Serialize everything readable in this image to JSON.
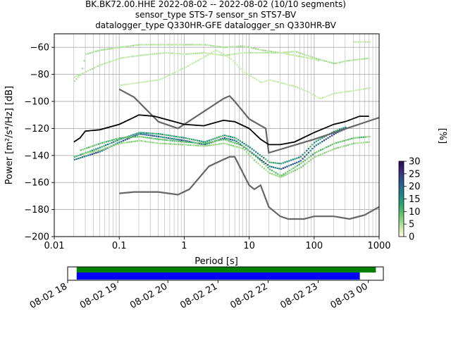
{
  "chart_data": [
    {
      "type": "heatmap",
      "title_lines": [
        "BK.BK72.00.HHE   2022-08-02 -- 2022-08-02  (10/10 segments)",
        "sensor_type STS-7 sensor_sn STS7-BV",
        "datalogger_type Q330HR-GFE datalogger_sn Q330HR-BV"
      ],
      "xlabel": "Period [s]",
      "ylabel": "Power [m²/s⁴/Hz] [dB]",
      "xscale": "log",
      "xlim": [
        0.01,
        1000
      ],
      "ylim": [
        -200,
        -50
      ],
      "xtick_labels": [
        "0.01",
        "0.1",
        "1",
        "10",
        "100",
        "1000"
      ],
      "ytick_labels": [
        "-200",
        "-180",
        "-160",
        "-140",
        "-120",
        "-100",
        "-80",
        "-60"
      ],
      "grid": true,
      "colorbar": {
        "label": "[%]",
        "range": [
          0,
          30
        ],
        "tick_labels": [
          "0",
          "5",
          "10",
          "15",
          "20",
          "25",
          "30"
        ]
      },
      "noise_models": {
        "high": [
          [
            0.1,
            -91
          ],
          [
            0.17,
            -97
          ],
          [
            0.4,
            -115
          ],
          [
            0.8,
            -120
          ],
          [
            4,
            -98
          ],
          [
            5,
            -96
          ],
          [
            6,
            -100
          ],
          [
            10,
            -113
          ],
          [
            18,
            -120
          ],
          [
            20,
            -138
          ],
          [
            100,
            -128
          ],
          [
            1000,
            -112
          ]
        ],
        "low": [
          [
            0.1,
            -168
          ],
          [
            0.17,
            -167
          ],
          [
            0.4,
            -167
          ],
          [
            0.8,
            -169
          ],
          [
            1.2,
            -165
          ],
          [
            2.4,
            -148
          ],
          [
            4,
            -143
          ],
          [
            5,
            -141
          ],
          [
            6,
            -141
          ],
          [
            10,
            -162
          ],
          [
            12,
            -165
          ],
          [
            15,
            -162
          ],
          [
            20,
            -178
          ],
          [
            30,
            -185
          ],
          [
            40,
            -187
          ],
          [
            70,
            -187
          ],
          [
            100,
            -185
          ],
          [
            200,
            -185
          ],
          [
            350,
            -187
          ],
          [
            600,
            -184
          ],
          [
            1000,
            -178
          ]
        ]
      },
      "mean_curve": [
        [
          0.02,
          -130
        ],
        [
          0.025,
          -127
        ],
        [
          0.03,
          -122
        ],
        [
          0.05,
          -121
        ],
        [
          0.1,
          -117
        ],
        [
          0.15,
          -113
        ],
        [
          0.2,
          -110
        ],
        [
          0.35,
          -111
        ],
        [
          0.5,
          -113
        ],
        [
          1,
          -117
        ],
        [
          2,
          -118
        ],
        [
          4,
          -114
        ],
        [
          6,
          -115
        ],
        [
          10,
          -120
        ],
        [
          15,
          -128
        ],
        [
          20,
          -132
        ],
        [
          30,
          -132
        ],
        [
          50,
          -130
        ],
        [
          100,
          -123
        ],
        [
          200,
          -117
        ],
        [
          300,
          -115
        ],
        [
          500,
          -111
        ],
        [
          700,
          -111
        ]
      ],
      "density_bands": [
        {
          "percent": 25,
          "points": [
            [
              0.02,
              -143
            ],
            [
              0.05,
              -137
            ],
            [
              0.1,
              -130
            ],
            [
              0.2,
              -124
            ],
            [
              0.4,
              -126
            ],
            [
              1,
              -129
            ],
            [
              2,
              -132
            ],
            [
              4,
              -127
            ],
            [
              6,
              -129
            ],
            [
              10,
              -137
            ],
            [
              20,
              -148
            ],
            [
              30,
              -150
            ],
            [
              60,
              -144
            ],
            [
              100,
              -133
            ],
            [
              200,
              -124
            ],
            [
              300,
              -120
            ]
          ]
        },
        {
          "percent": 18,
          "points": [
            [
              0.02,
              -141
            ],
            [
              0.05,
              -134
            ],
            [
              0.1,
              -128
            ],
            [
              0.2,
              -123
            ],
            [
              0.4,
              -124
            ],
            [
              1,
              -127
            ],
            [
              2,
              -130
            ],
            [
              4,
              -125
            ],
            [
              6,
              -127
            ],
            [
              10,
              -134
            ],
            [
              20,
              -145
            ],
            [
              30,
              -146
            ],
            [
              60,
              -141
            ],
            [
              100,
              -130
            ],
            [
              200,
              -122
            ],
            [
              300,
              -119
            ]
          ]
        },
        {
          "percent": 12,
          "points": [
            [
              0.025,
              -136
            ],
            [
              0.05,
              -131
            ],
            [
              0.1,
              -127
            ],
            [
              0.2,
              -126
            ],
            [
              0.4,
              -128
            ],
            [
              1,
              -130
            ],
            [
              2,
              -131
            ],
            [
              4,
              -128
            ],
            [
              8,
              -133
            ],
            [
              12,
              -140
            ],
            [
              20,
              -150
            ],
            [
              30,
              -155
            ],
            [
              60,
              -146
            ],
            [
              100,
              -138
            ],
            [
              200,
              -131
            ],
            [
              400,
              -127
            ],
            [
              700,
              -126
            ]
          ]
        },
        {
          "percent": 8,
          "points": [
            [
              0.025,
              -139
            ],
            [
              0.05,
              -136
            ],
            [
              0.1,
              -131
            ],
            [
              0.2,
              -129
            ],
            [
              0.4,
              -131
            ],
            [
              1,
              -132
            ],
            [
              2,
              -133
            ],
            [
              4,
              -131
            ],
            [
              8,
              -135
            ],
            [
              12,
              -144
            ],
            [
              20,
              -153
            ],
            [
              30,
              -156
            ],
            [
              60,
              -149
            ],
            [
              100,
              -141
            ],
            [
              200,
              -135
            ],
            [
              400,
              -131
            ],
            [
              700,
              -130
            ]
          ]
        },
        {
          "percent": 6,
          "points": [
            [
              0.02,
              -85
            ],
            [
              0.025,
              -80
            ],
            [
              0.03,
              -65
            ],
            [
              0.05,
              -62
            ],
            [
              0.1,
              -60
            ],
            [
              0.2,
              -58
            ],
            [
              0.4,
              -58
            ],
            [
              1,
              -58
            ],
            [
              2,
              -58
            ],
            [
              4,
              -60
            ],
            [
              8,
              -59
            ],
            [
              15,
              -62
            ],
            [
              30,
              -64
            ],
            [
              50,
              -63
            ],
            [
              100,
              -68
            ],
            [
              200,
              -72
            ],
            [
              300,
              -70
            ],
            [
              700,
              -68
            ]
          ]
        },
        {
          "percent": 5,
          "points": [
            [
              0.02,
              -82
            ],
            [
              0.05,
              -73
            ],
            [
              0.1,
              -68
            ],
            [
              0.2,
              -66
            ],
            [
              0.5,
              -64
            ],
            [
              1,
              -65
            ],
            [
              2,
              -64
            ],
            [
              4,
              -66
            ],
            [
              8,
              -64
            ],
            [
              20,
              -64
            ],
            [
              30,
              -64
            ],
            [
              80,
              -68
            ],
            [
              120,
              -70
            ]
          ]
        },
        {
          "percent": 4,
          "points": [
            [
              0.1,
              -88
            ],
            [
              0.2,
              -86
            ],
            [
              0.4,
              -84
            ],
            [
              1,
              -75
            ],
            [
              2,
              -67
            ],
            [
              3,
              -62
            ],
            [
              5,
              -68
            ],
            [
              8,
              -78
            ],
            [
              15,
              -86
            ],
            [
              20,
              -84
            ],
            [
              50,
              -89
            ],
            [
              80,
              -93
            ],
            [
              120,
              -98
            ],
            [
              200,
              -94
            ],
            [
              400,
              -92
            ],
            [
              700,
              -90
            ]
          ]
        },
        {
          "percent": 4,
          "points": [
            [
              400,
              -56
            ],
            [
              500,
              -56
            ],
            [
              700,
              -56
            ]
          ]
        }
      ],
      "legend": null
    },
    {
      "type": "timeline",
      "xtick_labels": [
        "08-02 18",
        "08-02 19",
        "08-02 20",
        "08-02 21",
        "08-02 22",
        "08-02 23",
        "08-03 00"
      ],
      "x_start_hours": 0.0,
      "x_end_hours": 6.3,
      "bars": [
        {
          "name": "data",
          "start_hours": 0.18,
          "end_hours": 6.15,
          "color": "#008000"
        },
        {
          "name": "psd",
          "start_hours": 0.18,
          "end_hours": 5.83,
          "color": "#0000ff"
        }
      ]
    }
  ],
  "colors": {
    "noise_model": "#666666",
    "mean": "#000000",
    "grid": "#b0b0b0",
    "colormap": [
      "#fffde4",
      "#b8e3a0",
      "#6cc46a",
      "#2ea273",
      "#21808c",
      "#2b5a8d",
      "#3d2e7f",
      "#2a0a52"
    ]
  }
}
